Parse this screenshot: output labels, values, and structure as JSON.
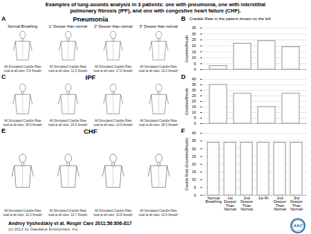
{
  "title": "Examples of lung-sounds analysis in 3 patients: one with pneumonia, one with interstitial\npulmonary fibrosis (IPF), and one with congestive heart failure (CHF).",
  "annotations": {
    "footer": "Andrey Vyshedskiy et al. Respir Care 2011;56:806-817",
    "copyright": "(c) 2012 by Daedalus Enterprises, Inc.",
    "logo": "AAC"
  },
  "chart_data": [
    {
      "type": "bar",
      "title": "Pneumonia",
      "subtitle": "Crackle Rate in the patient shown on the left",
      "annotations": {
        "left_label": "A",
        "right_label": "B",
        "column_headers": [
          "Normal Breathing",
          "1° Deeper than normal",
          "2° Deeper than normal",
          "3° Deeper than normal"
        ],
        "figure_labels": [
          "All Simulated Crackle Rate\ntotal at all sites: 5.8 /breath",
          "All Simulated Crackle Rate\ntotal at all sites: 11.5 /breath",
          "All Simulated Crackle Rate\ntotal at all sites: 17.0 /breath",
          "All Simulated Crackle Rate\ntotal at all sites: 19.2 /breath"
        ]
      },
      "categories": [
        null,
        null,
        null,
        null
      ],
      "values": [
        3,
        22,
        24,
        19
      ],
      "color": "#ffffff",
      "ylabel": "Crackles/Breath",
      "ylim": [
        0,
        35
      ],
      "yticks": [
        0,
        5,
        10,
        15,
        20,
        25,
        30,
        35
      ],
      "grid": true
    },
    {
      "type": "bar",
      "title": "IPF",
      "annotations": {
        "left_label": "C",
        "right_label": "D",
        "figure_labels": [
          "All Simulated Crackle Rate\ntotal at all sites: 36.5 /breath",
          "All Simulated Crackle Rate\ntotal at all sites: 19.5 /breath",
          "All Simulated Crackle Rate\ntotal at all sites: 14.9 /breath",
          "All Simulated Crackle Rate\ntotal at all sites: 28.3 /breath"
        ]
      },
      "categories": [
        null,
        null,
        null,
        null
      ],
      "values": [
        35,
        27,
        15,
        27
      ],
      "color": "#ffffff",
      "ylabel": "Crackles/Breath",
      "ylim": [
        0,
        40
      ],
      "yticks": [
        0,
        5,
        10,
        15,
        20,
        25,
        30,
        35,
        40
      ],
      "grid": true
    },
    {
      "type": "bar",
      "title": "CHF",
      "annotations": {
        "left_label": "E",
        "right_label": "F",
        "figure_labels": [
          "All Simulated Crackle Rate\ntotal at all sites: 10.3 /breath",
          "All Simulated Crackle Rate\ntotal at all sites: 10.7 /breath",
          "All Simulated Crackle Rate\ntotal at all sites: 10.8 /breath",
          "All Simulated Crackle Rate\ntotal at all sites: 10.4 /breath"
        ]
      },
      "categories": [
        "Normal\nBreathing",
        "1st\nDeeper\nThan\nNormal",
        "2nd\nDeeper\nThan\nNormal",
        "1st RI",
        "2nd\nDeeper\nThan\nNormal",
        "3rd\nDeeper\nThan\nNormal"
      ],
      "values": [
        34,
        34,
        34,
        34,
        34,
        34
      ],
      "color": "#ffffff",
      "ylabel": "Crackle Rate (Crackles/Breath)",
      "ylim": [
        0,
        40
      ],
      "yticks": [
        0,
        5,
        10,
        15,
        20,
        25,
        30,
        35,
        40
      ],
      "grid": true
    }
  ]
}
